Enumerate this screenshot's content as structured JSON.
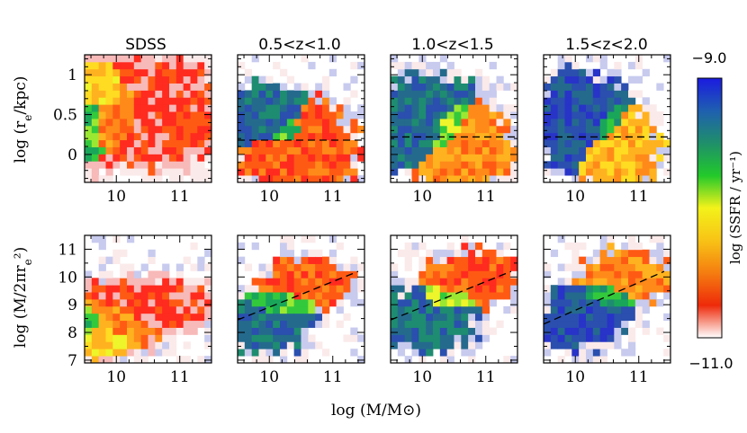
{
  "chart_data": {
    "type": "heatmap",
    "panel_titles": [
      "SDSS",
      "0.5<z<1.0",
      "1.0<z<1.5",
      "1.5<z<2.0"
    ],
    "xlabel": "log (M/M⊙)",
    "xlim": [
      9.5,
      11.5
    ],
    "xticks": [
      10,
      11
    ],
    "rows": [
      {
        "name": "size",
        "ylabel_parts": [
          "log (r",
          "e",
          "/kpc)"
        ],
        "ylim": [
          -0.35,
          1.25
        ],
        "yticks": [
          0,
          0.5,
          1
        ],
        "ytick_labels": [
          "0",
          "0.5",
          "1"
        ],
        "guide_lines": [
          null,
          {
            "x": [
              9.5,
              11.5
            ],
            "y": [
              0.18,
              0.18
            ]
          },
          {
            "x": [
              9.5,
              11.5
            ],
            "y": [
              0.22,
              0.22
            ]
          },
          {
            "x": [
              9.5,
              11.5
            ],
            "y": [
              0.22,
              0.22
            ]
          }
        ]
      },
      {
        "name": "density",
        "ylabel_parts": [
          "log (M/2πr",
          "e",
          "²)"
        ],
        "ylim": [
          6.9,
          11.5
        ],
        "yticks": [
          7,
          8,
          9,
          10,
          11
        ],
        "ytick_labels": [
          "7",
          "8",
          "9",
          "10",
          "11"
        ],
        "guide_lines": [
          null,
          {
            "x": [
              9.5,
              11.4
            ],
            "y": [
              8.45,
              10.2
            ]
          },
          {
            "x": [
              9.5,
              11.4
            ],
            "y": [
              8.45,
              10.2
            ]
          },
          {
            "x": [
              9.5,
              11.4
            ],
            "y": [
              8.3,
              10.2
            ]
          }
        ]
      }
    ],
    "colorbar": {
      "label": "log (SSFR / yr⁻¹)",
      "range": [
        -11.0,
        -9.0
      ],
      "top_label": "−9.0",
      "bottom_label": "−11.0",
      "colors_top_to_bottom": [
        "#1b1be0",
        "#1f5fb0",
        "#1f8f6a",
        "#22c92b",
        "#f3f21a",
        "#f8c316",
        "#f57d10",
        "#ee2a0a",
        "#ffffff"
      ]
    },
    "ssfr_colors": [
      "#fbeaea",
      "#f8b9b9",
      "#ff2b1f",
      "#ff5a14",
      "#ff8a1a",
      "#ffb21f",
      "#ffdc22",
      "#eef52a",
      "#9be833",
      "#33c93c",
      "#1aa65a",
      "#1e8c70",
      "#246a8d",
      "#2a4fae",
      "#2833c8",
      "#7d86d6",
      "#c8cbee"
    ],
    "regions": [
      [
        [
          {
            "cx": 10.7,
            "cy": 0.55,
            "sx": 0.75,
            "sy": 0.45,
            "c": 2,
            "w": 1.0
          },
          {
            "cx": 10.1,
            "cy": 0.55,
            "sx": 0.55,
            "sy": 0.35,
            "c": 4,
            "w": 0.9
          },
          {
            "cx": 9.8,
            "cy": 0.75,
            "sx": 0.4,
            "sy": 0.25,
            "c": 6,
            "w": 0.9
          },
          {
            "cx": 9.6,
            "cy": 0.4,
            "sx": 0.18,
            "sy": 0.3,
            "c": 9,
            "w": 0.9
          }
        ],
        [
          {
            "cx": 10.5,
            "cy": 0.05,
            "sx": 0.6,
            "sy": 0.35,
            "c": 3,
            "w": 1.0
          },
          {
            "cx": 9.9,
            "cy": 0.45,
            "sx": 0.45,
            "sy": 0.25,
            "c": 12,
            "w": 1.0
          },
          {
            "cx": 10.3,
            "cy": 0.25,
            "sx": 0.3,
            "sy": 0.2,
            "c": 9,
            "w": 0.9
          }
        ],
        [
          {
            "cx": 10.7,
            "cy": 0.05,
            "sx": 0.5,
            "sy": 0.35,
            "c": 4,
            "w": 1.0
          },
          {
            "cx": 10.0,
            "cy": 0.45,
            "sx": 0.5,
            "sy": 0.35,
            "c": 12,
            "w": 1.0
          },
          {
            "cx": 10.4,
            "cy": 0.3,
            "sx": 0.3,
            "sy": 0.3,
            "c": 8,
            "w": 0.9
          }
        ],
        [
          {
            "cx": 10.7,
            "cy": 0.05,
            "sx": 0.4,
            "sy": 0.3,
            "c": 5,
            "w": 1.0
          },
          {
            "cx": 10.0,
            "cy": 0.45,
            "sx": 0.45,
            "sy": 0.35,
            "c": 13,
            "w": 1.0
          },
          {
            "cx": 10.5,
            "cy": 0.3,
            "sx": 0.25,
            "sy": 0.25,
            "c": 10,
            "w": 0.8
          }
        ]
      ],
      [
        [
          {
            "cx": 10.6,
            "cy": 9.0,
            "sx": 0.8,
            "sy": 0.6,
            "c": 2,
            "w": 1.0
          },
          {
            "cx": 10.0,
            "cy": 8.5,
            "sx": 0.5,
            "sy": 0.7,
            "c": 4,
            "w": 0.9
          },
          {
            "cx": 9.8,
            "cy": 7.8,
            "sx": 0.35,
            "sy": 0.5,
            "c": 6,
            "w": 0.9
          },
          {
            "cx": 9.6,
            "cy": 8.4,
            "sx": 0.18,
            "sy": 0.5,
            "c": 9,
            "w": 0.9
          }
        ],
        [
          {
            "cx": 10.6,
            "cy": 9.9,
            "sx": 0.45,
            "sy": 0.55,
            "c": 3,
            "w": 1.0
          },
          {
            "cx": 9.9,
            "cy": 8.2,
            "sx": 0.45,
            "sy": 0.6,
            "c": 12,
            "w": 1.0
          },
          {
            "cx": 10.2,
            "cy": 9.0,
            "sx": 0.35,
            "sy": 0.35,
            "c": 9,
            "w": 0.9
          }
        ],
        [
          {
            "cx": 10.8,
            "cy": 10.0,
            "sx": 0.5,
            "sy": 0.6,
            "c": 3,
            "w": 1.0
          },
          {
            "cx": 10.0,
            "cy": 8.4,
            "sx": 0.5,
            "sy": 0.7,
            "c": 12,
            "w": 1.0
          },
          {
            "cx": 10.4,
            "cy": 9.2,
            "sx": 0.3,
            "sy": 0.35,
            "c": 8,
            "w": 0.9
          }
        ],
        [
          {
            "cx": 10.8,
            "cy": 10.1,
            "sx": 0.45,
            "sy": 0.55,
            "c": 4,
            "w": 1.0
          },
          {
            "cx": 10.1,
            "cy": 8.5,
            "sx": 0.45,
            "sy": 0.7,
            "c": 13,
            "w": 1.0
          },
          {
            "cx": 10.5,
            "cy": 9.3,
            "sx": 0.3,
            "sy": 0.35,
            "c": 10,
            "w": 0.8
          }
        ]
      ]
    ]
  }
}
